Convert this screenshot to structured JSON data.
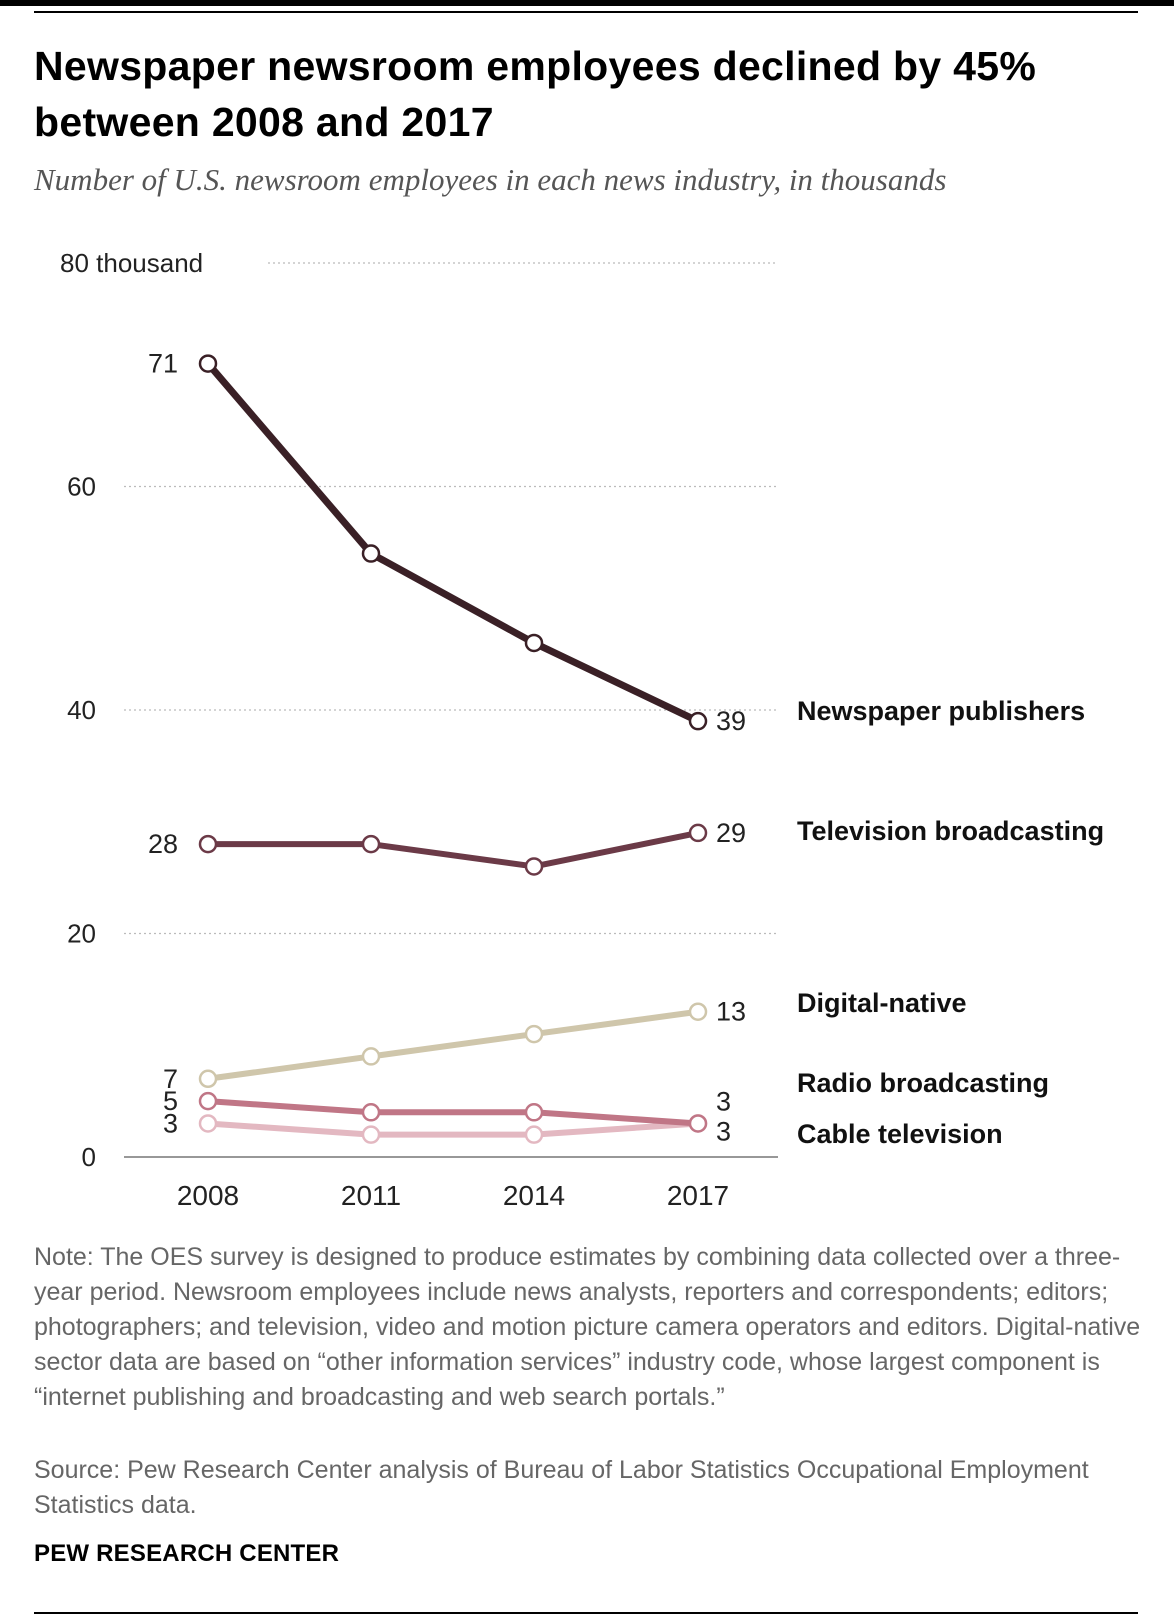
{
  "header": {
    "title": "Newspaper newsroom employees declined by 45% between 2008 and 2017",
    "subtitle": "Number of U.S. newsroom employees in each news industry, in thousands"
  },
  "chart_data": {
    "type": "line",
    "x": [
      "2008",
      "2011",
      "2014",
      "2017"
    ],
    "ylim": [
      0,
      80
    ],
    "y_ticks": [
      {
        "value": 0,
        "label": "0"
      },
      {
        "value": 20,
        "label": "20"
      },
      {
        "value": 40,
        "label": "40"
      },
      {
        "value": 60,
        "label": "60"
      },
      {
        "value": 80,
        "label": "80 thousand"
      }
    ],
    "grid": true,
    "legend": "direct labels at right end of each line",
    "series": [
      {
        "name": "Newspaper publishers",
        "color": "#3a2026",
        "values": [
          71,
          54,
          46,
          39
        ],
        "start_label": "71",
        "end_label": "39"
      },
      {
        "name": "Television broadcasting",
        "color": "#6b3a47",
        "values": [
          28,
          28,
          26,
          29
        ],
        "start_label": "28",
        "end_label": "29"
      },
      {
        "name": "Digital-native",
        "color": "#cfc6ab",
        "values": [
          7,
          9,
          11,
          13
        ],
        "start_label": "7",
        "end_label": "13"
      },
      {
        "name": "Radio broadcasting",
        "color": "#c07686",
        "values": [
          5,
          4,
          4,
          3
        ],
        "start_label": "5",
        "end_label": "3"
      },
      {
        "name": "Cable television",
        "color": "#e3b8c1",
        "values": [
          3,
          2,
          2,
          3
        ],
        "start_label": "3",
        "end_label": "3"
      }
    ]
  },
  "footer": {
    "note": "Note: The OES survey is designed to produce estimates by combining data collected over a three-year period. Newsroom employees include news analysts, reporters and correspondents; editors; photographers; and television, video and motion picture camera operators and editors. Digital-native sector data are based on “other information services” industry code, whose largest component is “internet publishing and broadcasting and web search portals.”",
    "source": "Source: Pew Research Center analysis of Bureau of Labor Statistics Occupational Employment Statistics data.",
    "brand": "PEW RESEARCH CENTER"
  }
}
